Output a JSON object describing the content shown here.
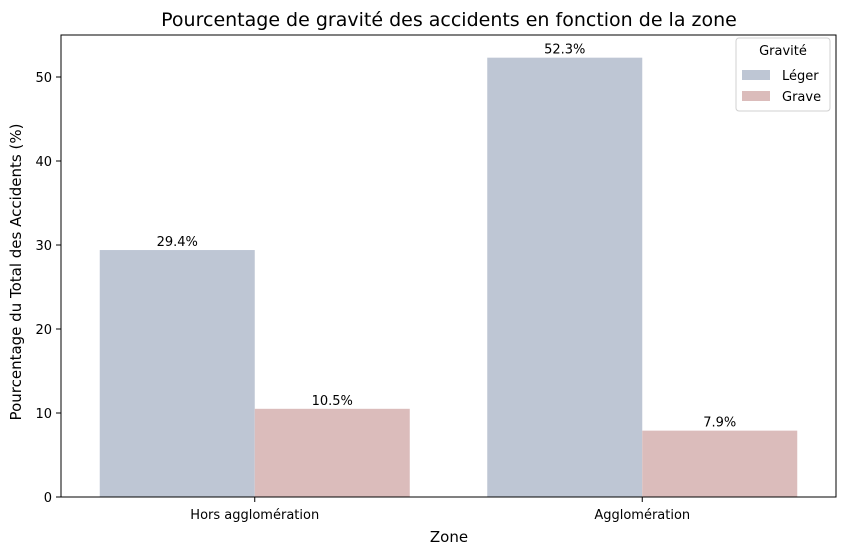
{
  "chart_data": {
    "type": "bar",
    "title": "Pourcentage de gravité des accidents en fonction de la zone",
    "xlabel": "Zone",
    "ylabel": "Pourcentage du Total des Accidents (%)",
    "categories": [
      "Hors agglomération",
      "Agglomération"
    ],
    "series": [
      {
        "name": "Léger",
        "values": [
          29.4,
          52.3
        ],
        "labels": [
          "29.4%",
          "52.3%"
        ],
        "color": "#bec6d4"
      },
      {
        "name": "Grave",
        "values": [
          10.5,
          7.9
        ],
        "labels": [
          "10.5%",
          "7.9%"
        ],
        "color": "#dbbcbb"
      }
    ],
    "ylim": [
      0,
      55
    ],
    "yticks": [
      0,
      10,
      20,
      30,
      40,
      50
    ],
    "yticks_labels": [
      "0",
      "10",
      "20",
      "30",
      "40",
      "50"
    ],
    "grid": false,
    "legend": {
      "title": "Gravité",
      "placement": "top-right"
    }
  }
}
